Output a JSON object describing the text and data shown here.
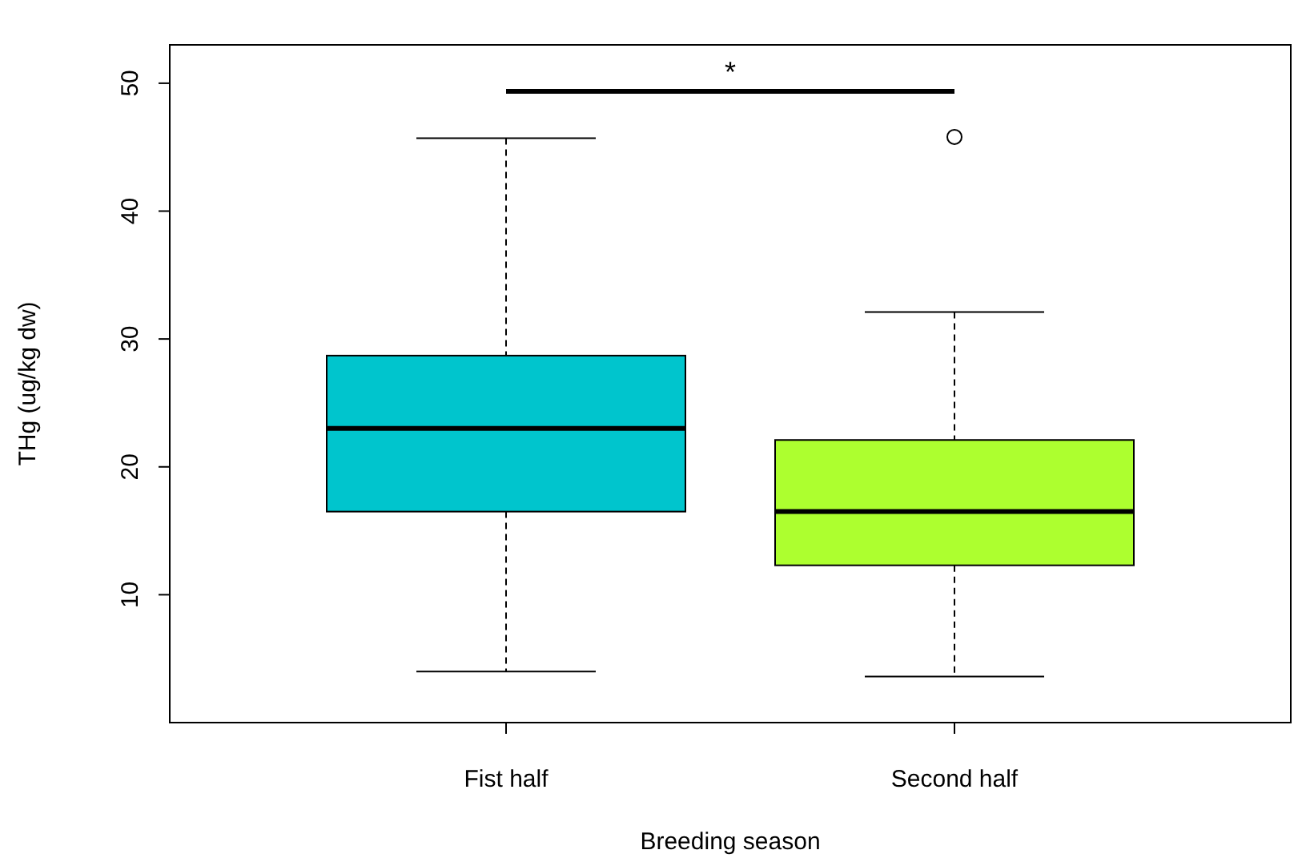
{
  "chart_data": {
    "type": "box",
    "xlabel": "Breeding season",
    "ylabel": "THg (ug/kg dw)",
    "categories": [
      "Fist half",
      "Second half"
    ],
    "colors": [
      "#00c5cd",
      "#adff2f"
    ],
    "boxes": [
      {
        "low": 4.0,
        "q1": 16.5,
        "median": 23.0,
        "q3": 28.7,
        "high": 45.7
      },
      {
        "low": 3.6,
        "q1": 12.3,
        "median": 16.5,
        "q3": 22.1,
        "high": 32.1,
        "outliers": [
          45.8
        ]
      }
    ],
    "ylim": [
      0,
      53
    ],
    "yticks": [
      10,
      20,
      30,
      40,
      50
    ],
    "annotations": [
      "*"
    ]
  }
}
